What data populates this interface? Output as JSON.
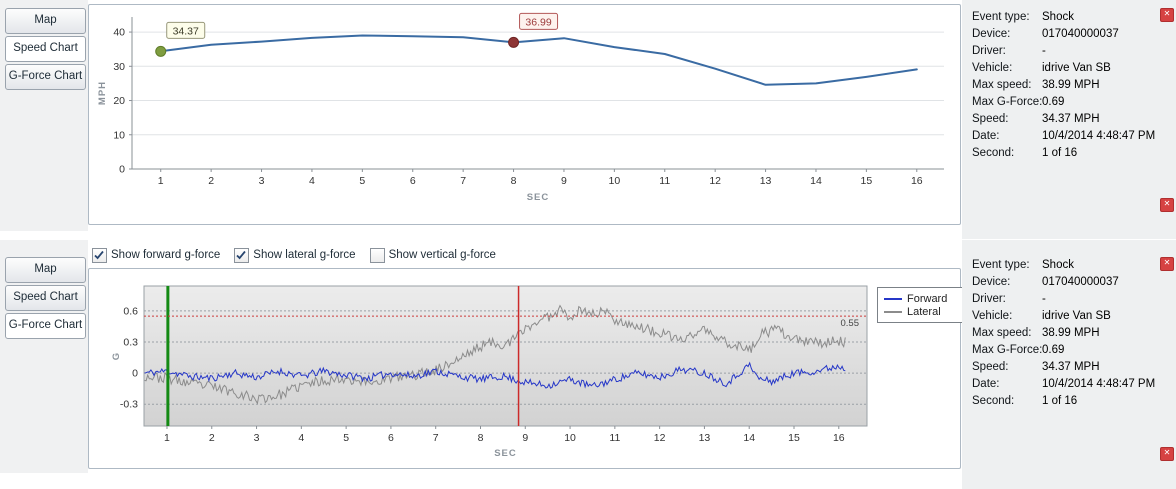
{
  "top_panel": {
    "tabs": [
      {
        "label": "Map"
      },
      {
        "label": "Speed Chart"
      },
      {
        "label": "G-Force Chart"
      }
    ],
    "selected_tab": "Speed Chart"
  },
  "bottom_panel": {
    "tabs": [
      {
        "label": "Map"
      },
      {
        "label": "Speed Chart"
      },
      {
        "label": "G-Force Chart"
      }
    ],
    "selected_tab": "G-Force Chart",
    "checkboxes": [
      {
        "label": "Show forward g-force",
        "checked": true
      },
      {
        "label": "Show lateral g-force",
        "checked": true
      },
      {
        "label": "Show vertical g-force",
        "checked": false
      }
    ]
  },
  "info_panel": {
    "rows": [
      {
        "label": "Event type:",
        "value": "Shock"
      },
      {
        "label": "Device:",
        "value": "017040000037"
      },
      {
        "label": "Driver:",
        "value": "-"
      },
      {
        "label": "Vehicle:",
        "value": "idrive Van SB"
      },
      {
        "label": "Max speed:",
        "value": "38.99 MPH"
      },
      {
        "label": "Max G-Force:",
        "value": "0.69"
      },
      {
        "label": "Speed:",
        "value": "34.37 MPH"
      },
      {
        "label": "Date:",
        "value": "10/4/2014 4:48:47 PM"
      },
      {
        "label": "Second:",
        "value": "1 of 16"
      }
    ]
  },
  "icons": {
    "close": "✕"
  },
  "chart_data": [
    {
      "type": "line",
      "title": "Speed chart",
      "xlabel": "SEC",
      "ylabel": "MPH",
      "xlim": [
        0.43,
        16.54
      ],
      "ylim": [
        0,
        44.4
      ],
      "xticks": [
        1,
        2,
        3,
        4,
        5,
        6,
        7,
        8,
        9,
        10,
        11,
        12,
        13,
        14,
        15,
        16
      ],
      "yticks": [
        0,
        10,
        20,
        30,
        40
      ],
      "grid": "horizontal",
      "line_color": "#3a6ba3",
      "x": [
        1,
        2,
        3,
        4,
        5,
        6,
        7,
        8,
        9,
        10,
        11,
        12,
        13,
        14,
        15,
        16
      ],
      "values": [
        34.37,
        36.3,
        37.2,
        38.3,
        38.99,
        38.8,
        38.5,
        36.99,
        38.2,
        35.6,
        33.6,
        29.3,
        24.6,
        25.0,
        26.9,
        29.1
      ],
      "markers": [
        {
          "x": 1,
          "y": 34.37,
          "label": "34.37",
          "fill": "#7f9d40",
          "stroke": "#5f7d29",
          "label_bg": "#fdfdea",
          "label_border": "#97977a",
          "label_color": "#3c3c28"
        },
        {
          "x": 8,
          "y": 36.99,
          "label": "36.99",
          "fill": "#8e3535",
          "stroke": "#6e2424",
          "label_bg": "#fdf2ee",
          "label_border": "#b35858",
          "label_color": "#9c3a3a"
        }
      ]
    },
    {
      "type": "line",
      "title": "G-Force chart",
      "xlabel": "SEC",
      "ylabel": "G",
      "xlim": [
        0.487,
        16.63
      ],
      "ylim": [
        -0.51,
        0.84
      ],
      "xticks": [
        1,
        2,
        3,
        4,
        5,
        6,
        7,
        8,
        9,
        10,
        11,
        12,
        13,
        14,
        15,
        16
      ],
      "yticks": [
        -0.3,
        0,
        0.3,
        0.6
      ],
      "grid": "dotted-horizontal",
      "legend_position": "right",
      "legend": [
        "Forward",
        "Lateral"
      ],
      "threshold": {
        "y": 0.55,
        "label": "0.55",
        "color": "#cc3b3b"
      },
      "vlines": [
        {
          "x": 1.02,
          "color": "#148a14",
          "width": 3,
          "name": "current-second-marker"
        },
        {
          "x": 8.85,
          "color": "#cc2a2a",
          "width": 1.5,
          "name": "shock-event-marker"
        }
      ],
      "series": [
        {
          "name": "Forward",
          "color": "#2637c8",
          "noise": 0.035,
          "trend": [
            [
              0.5,
              0.0
            ],
            [
              1,
              0.02
            ],
            [
              1.5,
              -0.03
            ],
            [
              2,
              -0.05
            ],
            [
              2.5,
              0.0
            ],
            [
              3,
              -0.04
            ],
            [
              3.5,
              0.02
            ],
            [
              4,
              -0.03
            ],
            [
              4.5,
              0.02
            ],
            [
              5,
              -0.02
            ],
            [
              5.5,
              -0.05
            ],
            [
              6,
              0.0
            ],
            [
              6.5,
              -0.03
            ],
            [
              7,
              0.02
            ],
            [
              7.5,
              -0.03
            ],
            [
              8,
              -0.06
            ],
            [
              8.5,
              -0.03
            ],
            [
              9,
              -0.09
            ],
            [
              9.5,
              -0.12
            ],
            [
              10,
              -0.06
            ],
            [
              10.5,
              -0.13
            ],
            [
              11,
              -0.06
            ],
            [
              11.5,
              0.0
            ],
            [
              12,
              -0.04
            ],
            [
              12.5,
              0.04
            ],
            [
              13,
              0.0
            ],
            [
              13.5,
              -0.1
            ],
            [
              14,
              0.08
            ],
            [
              14.2,
              -0.05
            ],
            [
              14.5,
              -0.08
            ],
            [
              15,
              0.0
            ],
            [
              15.5,
              0.02
            ],
            [
              16,
              0.07
            ],
            [
              16.15,
              0.04
            ]
          ]
        },
        {
          "name": "Lateral",
          "color": "#8c8c8c",
          "noise": 0.05,
          "trend": [
            [
              0.5,
              -0.03
            ],
            [
              1,
              -0.05
            ],
            [
              1.5,
              -0.1
            ],
            [
              2,
              -0.13
            ],
            [
              2.5,
              -0.18
            ],
            [
              3,
              -0.25
            ],
            [
              3.3,
              -0.23
            ],
            [
              3.6,
              -0.2
            ],
            [
              4,
              -0.12
            ],
            [
              4.5,
              -0.07
            ],
            [
              5,
              -0.05
            ],
            [
              5.5,
              -0.09
            ],
            [
              6,
              -0.05
            ],
            [
              6.5,
              -0.02
            ],
            [
              7,
              0.03
            ],
            [
              7.5,
              0.13
            ],
            [
              8,
              0.26
            ],
            [
              8.3,
              0.3
            ],
            [
              8.6,
              0.27
            ],
            [
              9,
              0.43
            ],
            [
              9.3,
              0.5
            ],
            [
              9.6,
              0.56
            ],
            [
              9.8,
              0.63
            ],
            [
              10,
              0.54
            ],
            [
              10.25,
              0.61
            ],
            [
              10.5,
              0.57
            ],
            [
              10.75,
              0.6
            ],
            [
              11,
              0.52
            ],
            [
              11.5,
              0.45
            ],
            [
              12,
              0.38
            ],
            [
              12.5,
              0.32
            ],
            [
              12.8,
              0.38
            ],
            [
              13,
              0.43
            ],
            [
              13.2,
              0.35
            ],
            [
              13.5,
              0.3
            ],
            [
              14,
              0.22
            ],
            [
              14.3,
              0.38
            ],
            [
              14.6,
              0.42
            ],
            [
              15,
              0.32
            ],
            [
              15.5,
              0.29
            ],
            [
              16,
              0.31
            ],
            [
              16.15,
              0.3
            ]
          ]
        }
      ]
    }
  ]
}
